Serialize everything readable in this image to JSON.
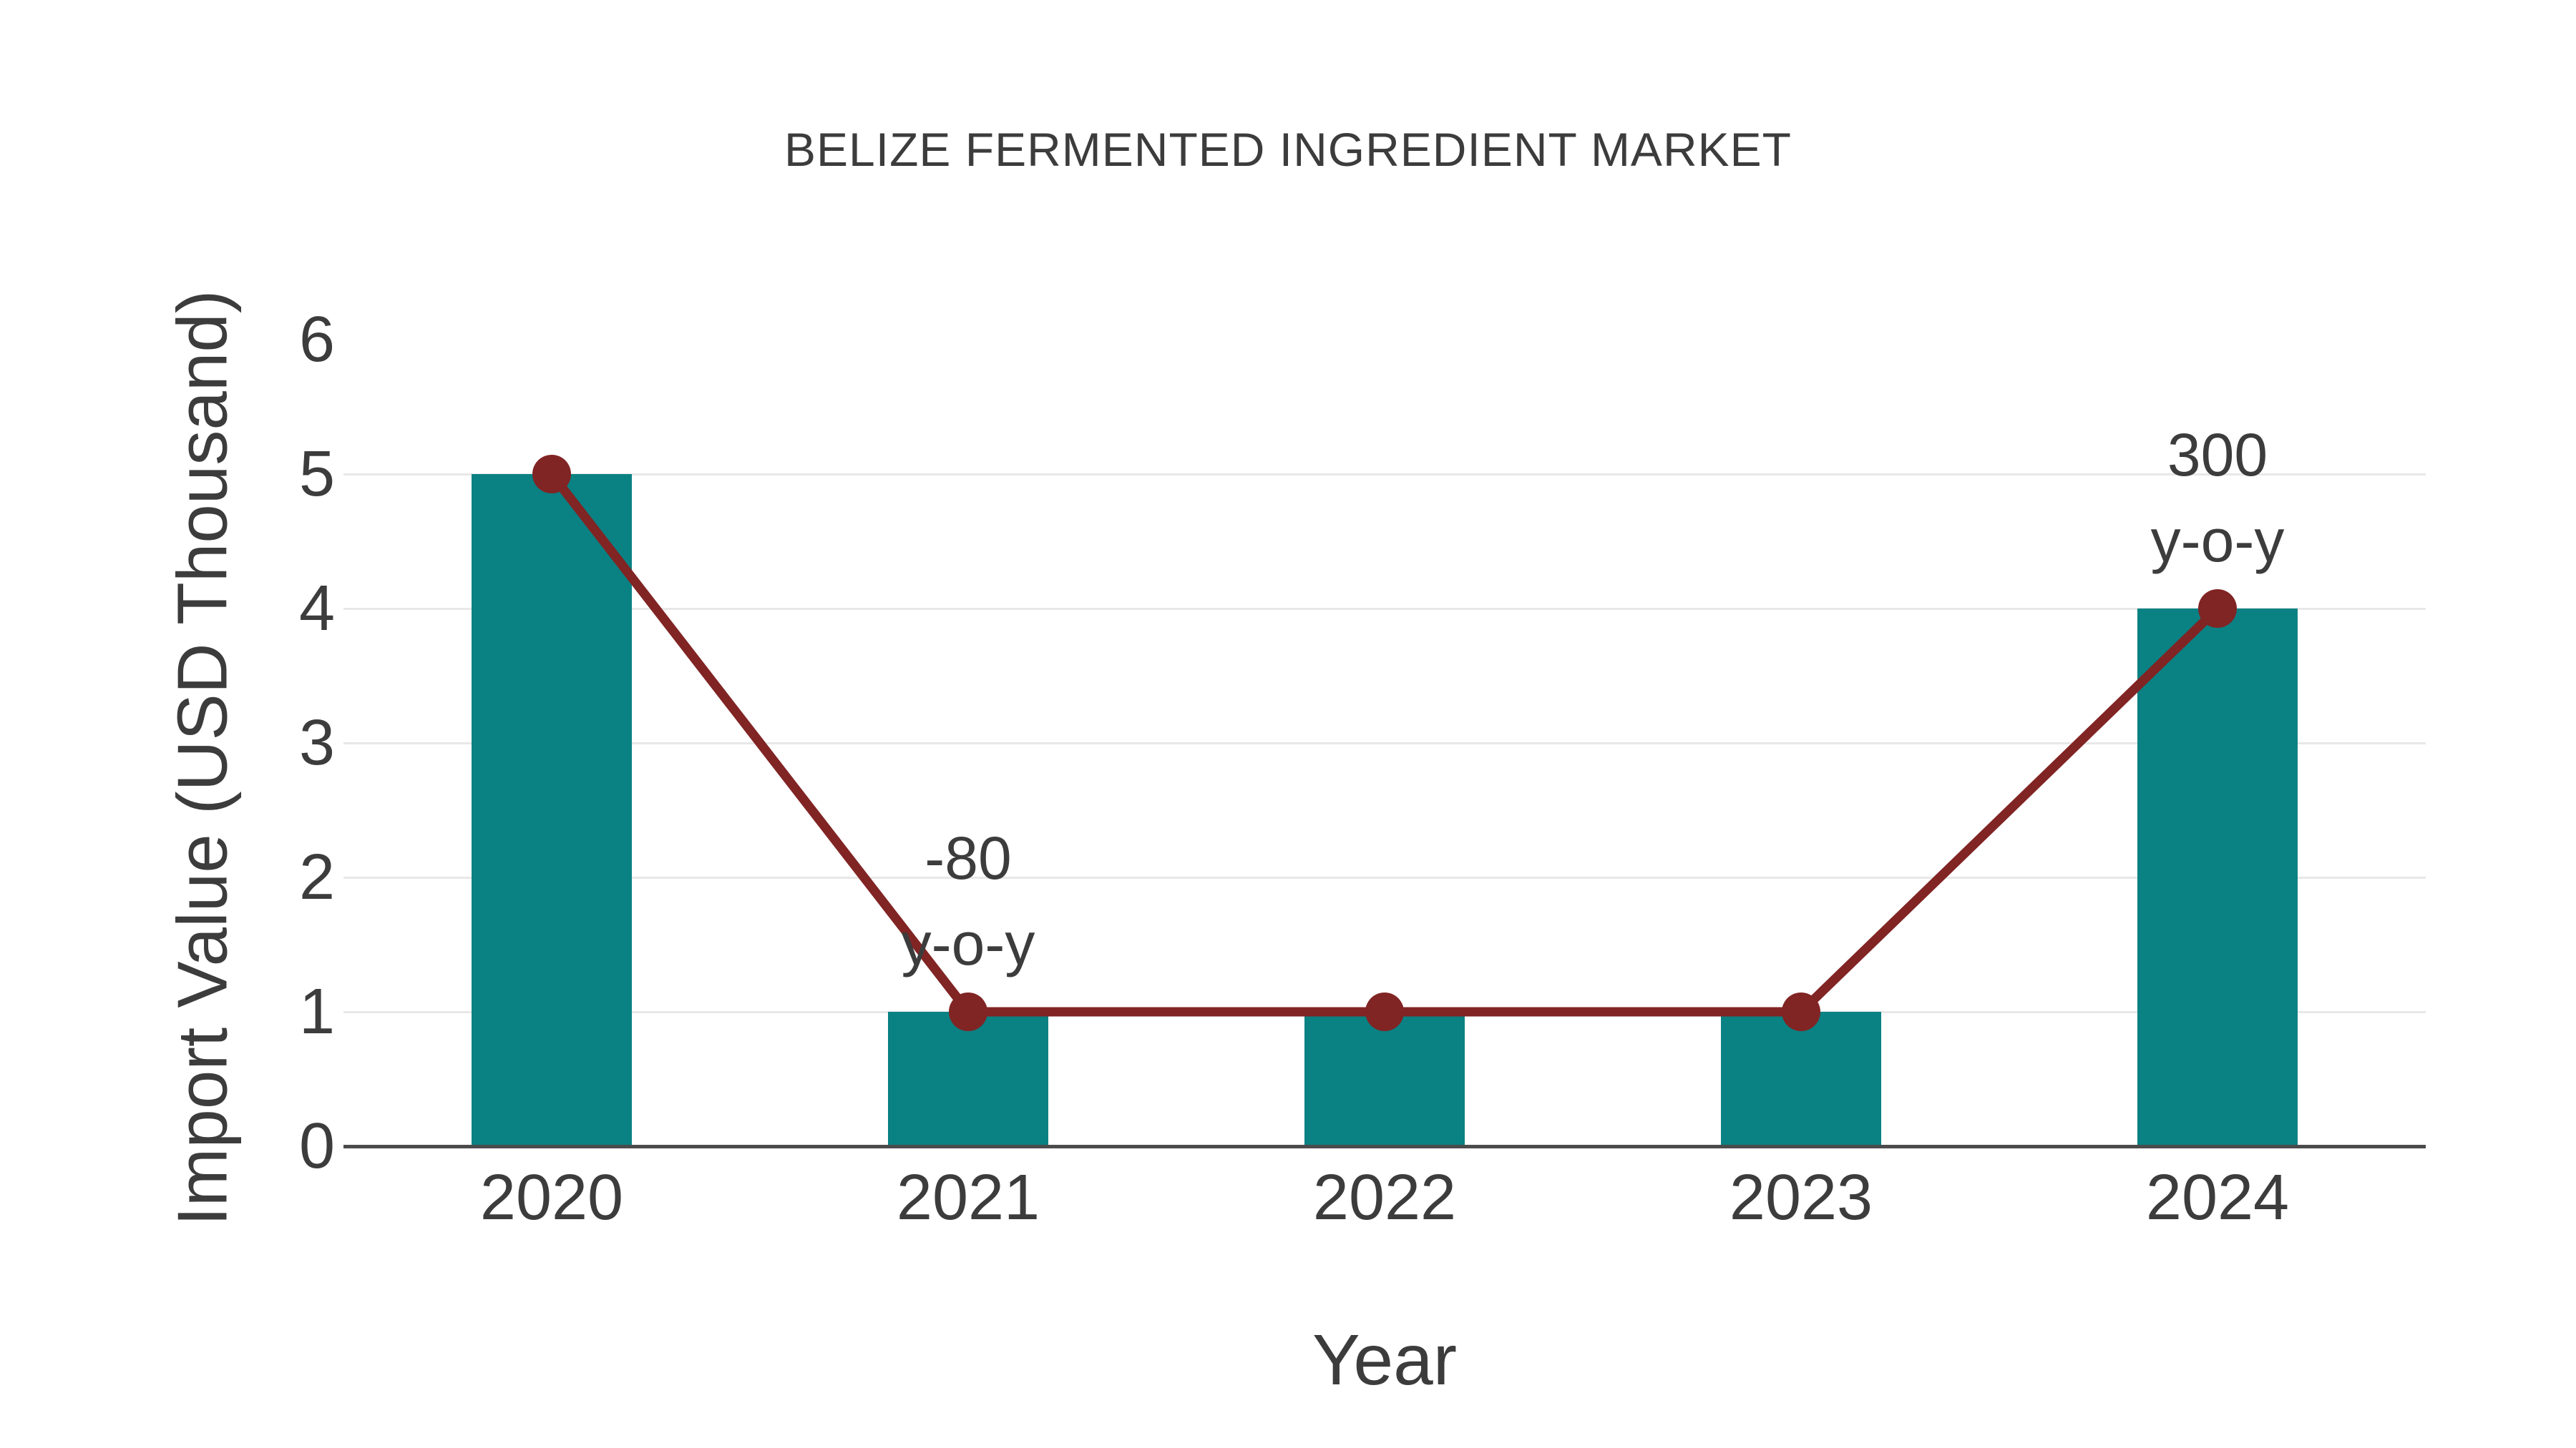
{
  "page": {
    "background": "#ffffff"
  },
  "colors": {
    "bar": "#0a8183",
    "line": "#812424",
    "marker": "#812424",
    "gridline": "#e8e8e8",
    "axis_line": "#4b4b4b",
    "text": "#3c3c3c"
  },
  "chart_data": {
    "type": "bar",
    "title": "BELIZE FERMENTED INGREDIENT MARKET",
    "categories": [
      "2020",
      "2021",
      "2022",
      "2023",
      "2024"
    ],
    "series": [
      {
        "name": "Import Value bars",
        "type": "bar",
        "values": [
          5,
          1,
          1,
          1,
          4
        ]
      },
      {
        "name": "Import Value trend line",
        "type": "line",
        "values": [
          5,
          1,
          1,
          1,
          4
        ]
      }
    ],
    "xlabel": "Year",
    "ylabel": "Import Value (USD Thousand)",
    "ylim": [
      0,
      6
    ],
    "yticks": [
      0,
      1,
      2,
      3,
      4,
      5,
      6
    ],
    "gridline_values": [
      1,
      2,
      3,
      4,
      5
    ],
    "legend_position": "none",
    "annotations": [
      {
        "category": "2021",
        "lines": [
          "-80",
          "y-o-y"
        ]
      },
      {
        "category": "2024",
        "lines": [
          "300",
          "y-o-y"
        ]
      }
    ]
  }
}
